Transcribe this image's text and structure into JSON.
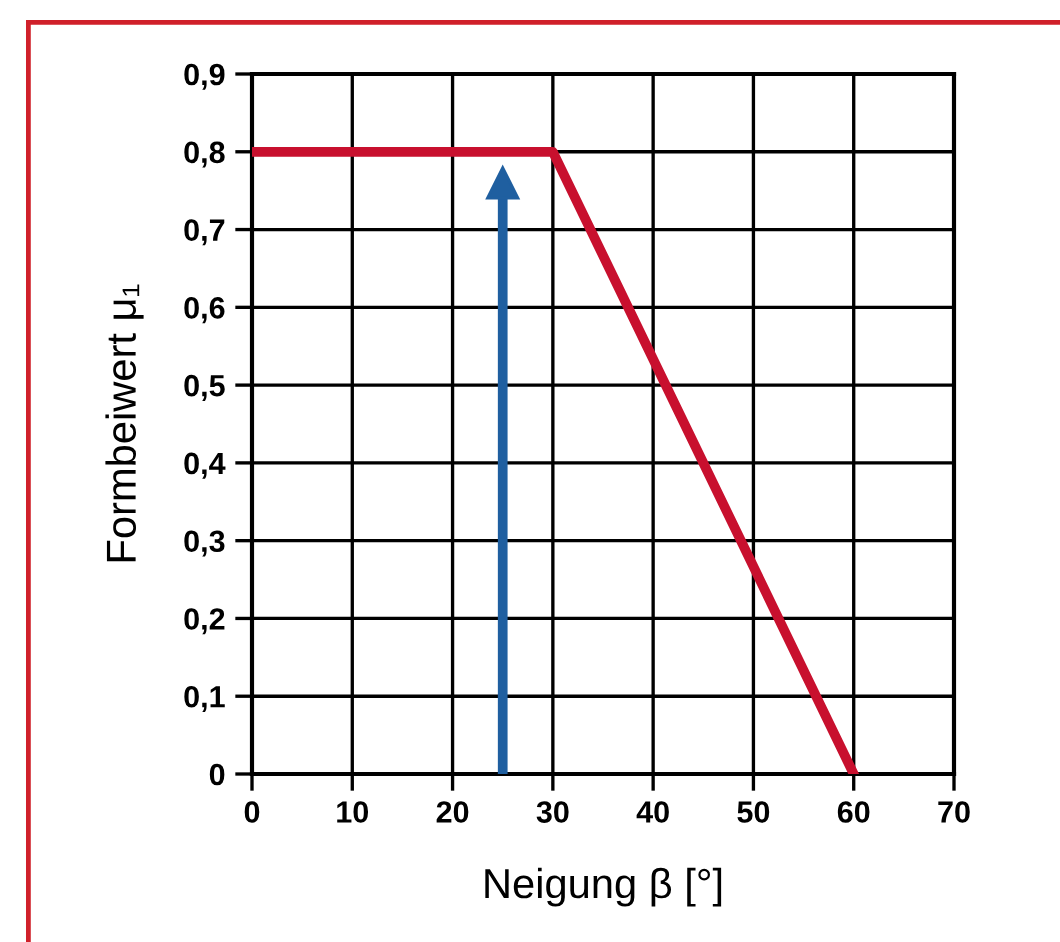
{
  "chart_data": {
    "type": "line",
    "xlabel": "Neigung β [°]",
    "ylabel": "Formbeiwert μ₁",
    "x": [
      0,
      30,
      60
    ],
    "series": [
      {
        "color": "#c8102e",
        "values": [
          0.8,
          0.8,
          0
        ]
      },
      {
        "color": "#1f5fa0",
        "x": [
          25,
          25
        ],
        "values": [
          0,
          0.76
        ],
        "marker": "triangle"
      }
    ],
    "xlim": [
      0,
      70
    ],
    "xticks": [
      0,
      10,
      20,
      30,
      40,
      50,
      60,
      70
    ],
    "ylim": [
      0,
      0.9
    ],
    "yticks": [
      0,
      {
        "value": 0.1,
        "label": "0,1"
      },
      {
        "value": 0.2,
        "label": "0,2"
      },
      {
        "value": 0.3,
        "label": "0,3"
      },
      {
        "value": 0.4,
        "label": "0,4"
      },
      {
        "value": 0.5,
        "label": "0,5"
      },
      {
        "value": 0.6,
        "label": "0,6"
      },
      {
        "value": 0.7,
        "label": "0,7"
      },
      {
        "value": 0.8,
        "label": "0,8"
      },
      {
        "value": 0.9,
        "label": "0,9"
      }
    ],
    "grid": true,
    "marker": "none",
    "line_style": "solid"
  }
}
